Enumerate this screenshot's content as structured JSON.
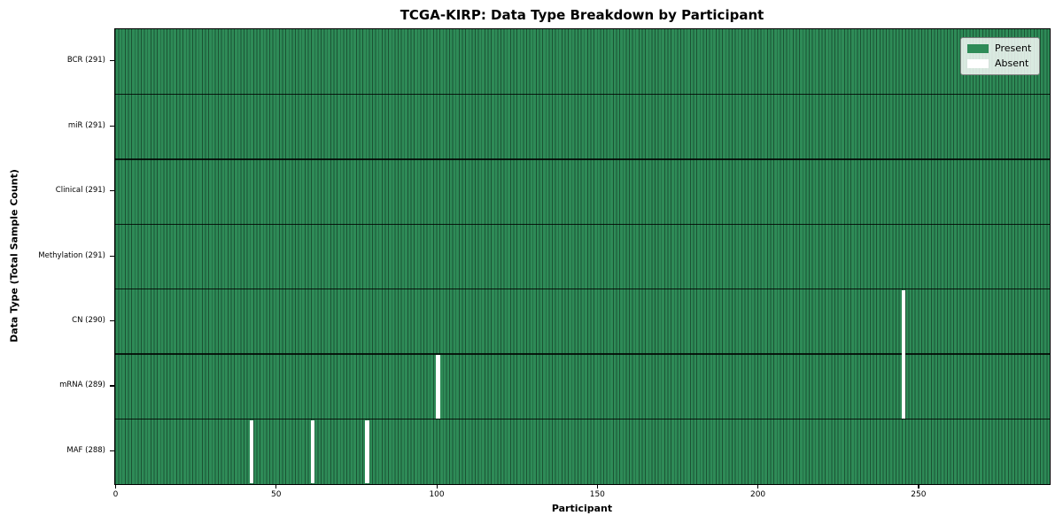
{
  "chart_data": {
    "type": "heatmap",
    "title": "TCGA-KIRP: Data Type Breakdown by Participant",
    "xlabel": "Participant",
    "ylabel": "Data Type (Total Sample Count)",
    "n_participants": 291,
    "xlim": [
      0,
      291
    ],
    "x_ticks": [
      0,
      50,
      100,
      150,
      200,
      250
    ],
    "grid": false,
    "legend_position": "upper right",
    "rows": [
      {
        "label": "BCR (291)",
        "data_type": "BCR",
        "present_count": 291,
        "absent_participants": []
      },
      {
        "label": "miR (291)",
        "data_type": "miR",
        "present_count": 291,
        "absent_participants": []
      },
      {
        "label": "Clinical (291)",
        "data_type": "Clinical",
        "present_count": 291,
        "absent_participants": []
      },
      {
        "label": "Methylation (291)",
        "data_type": "Methylation",
        "present_count": 291,
        "absent_participants": []
      },
      {
        "label": "CN (290)",
        "data_type": "CN",
        "present_count": 290,
        "absent_participants": [
          245
        ]
      },
      {
        "label": "mRNA (289)",
        "data_type": "mRNA",
        "present_count": 289,
        "absent_participants": [
          100,
          245
        ]
      },
      {
        "label": "MAF (288)",
        "data_type": "MAF",
        "present_count": 288,
        "absent_participants": [
          42,
          61,
          78
        ]
      }
    ],
    "legend": [
      {
        "label": "Present",
        "color": "#2e8b57"
      },
      {
        "label": "Absent",
        "color": "#ffffff"
      }
    ],
    "colors": {
      "present": "#2e8b57",
      "absent": "#ffffff",
      "bar_edge": "#1b5334",
      "separator": "#000000"
    }
  }
}
